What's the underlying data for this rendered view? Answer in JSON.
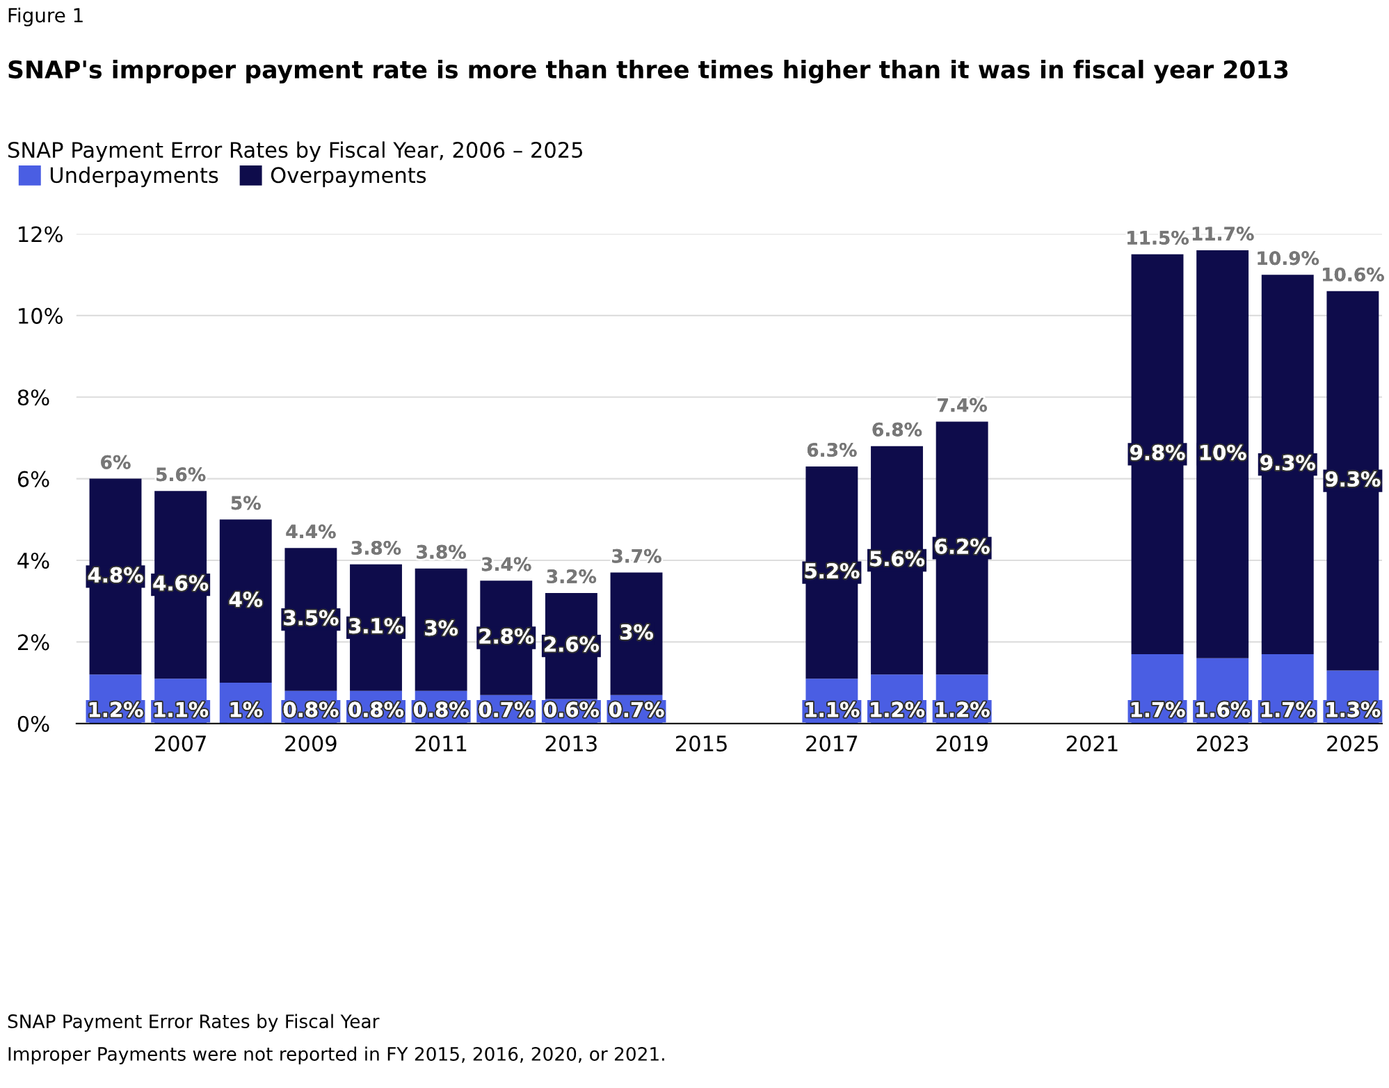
{
  "chart_data": {
    "type": "bar",
    "title": "SNAP's improper payment rate is more than three times higher than it was in fiscal year 2013",
    "subtitle": "SNAP Payment Error Rates by Fiscal Year, 2006 – 2025",
    "annotations": [
      "Figure 1",
      "SNAP Payment Error Rates by Fiscal Year",
      "Improper Payments were not reported in FY 2015, 2016, 2020, or 2021."
    ],
    "categories": [
      null,
      "2007",
      null,
      "2009",
      null,
      "2011",
      null,
      "2013",
      null,
      "2015",
      null,
      "2017",
      null,
      "2019",
      null,
      "2021",
      null,
      "2023",
      null,
      "2025"
    ],
    "stacked": true,
    "series": [
      {
        "name": "Underpayments",
        "color": "#4a5ee3",
        "values": [
          1.2,
          1.1,
          1.0,
          0.8,
          0.8,
          0.8,
          0.7,
          0.6,
          0.7,
          null,
          null,
          1.1,
          1.2,
          1.2,
          null,
          null,
          1.7,
          1.6,
          1.7,
          1.3
        ],
        "value_labels": [
          "1.2%",
          "1.1%",
          "1%",
          "0.8%",
          "0.8%",
          "0.8%",
          "0.7%",
          "0.6%",
          "0.7%",
          null,
          null,
          "1.1%",
          "1.2%",
          "1.2%",
          null,
          null,
          "1.7%",
          "1.6%",
          "1.7%",
          "1.3%"
        ]
      },
      {
        "name": "Overpayments",
        "color": "#0e0c4b",
        "values": [
          4.8,
          4.6,
          4.0,
          3.5,
          3.1,
          3.0,
          2.8,
          2.6,
          3.0,
          null,
          null,
          5.2,
          5.6,
          6.2,
          null,
          null,
          9.8,
          10.0,
          9.3,
          9.3
        ],
        "value_labels": [
          "4.8%",
          "4.6%",
          "4%",
          "3.5%",
          "3.1%",
          "3%",
          "2.8%",
          "2.6%",
          "3%",
          null,
          null,
          "5.2%",
          "5.6%",
          "6.2%",
          null,
          null,
          "9.8%",
          "10%",
          "9.3%",
          "9.3%"
        ]
      }
    ],
    "totals": [
      "6%",
      "5.6%",
      "5%",
      "4.4%",
      "3.8%",
      "3.8%",
      "3.4%",
      "3.2%",
      "3.7%",
      null,
      null,
      "6.3%",
      "6.8%",
      "7.4%",
      null,
      null,
      "11.5%",
      "11.7%",
      "10.9%",
      "10.6%"
    ],
    "ylim": [
      0,
      12
    ],
    "yticks": [
      {
        "value": 0,
        "label": "0%"
      },
      {
        "value": 2,
        "label": "2%"
      },
      {
        "value": 4,
        "label": "4%"
      },
      {
        "value": 6,
        "label": "6%"
      },
      {
        "value": 8,
        "label": "8%"
      },
      {
        "value": 10,
        "label": "10%"
      },
      {
        "value": 12,
        "label": "12%"
      }
    ],
    "grid": "y",
    "legend": "top left"
  }
}
